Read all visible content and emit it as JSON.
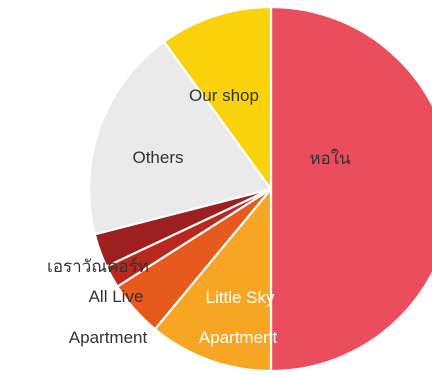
{
  "chart_data": {
    "type": "pie",
    "title": "",
    "values": [
      50.0,
      11.0,
      5.0,
      2.0,
      3.0,
      19.0,
      10.0
    ],
    "labels": [
      "หอใน",
      "Little Sky\nApartment",
      "Apartment",
      "All Live",
      "เอราวัณคอร์ท",
      "Others",
      "Our shop"
    ],
    "colors": [
      "#EA4E5C",
      "#F6A623",
      "#E75A1E",
      "#B9281E",
      "#9E1F1F",
      "#EAEAEA",
      "#FAD20C"
    ],
    "label_colors": [
      "#333333",
      "#ffffff",
      "#333333",
      "#333333",
      "#333333",
      "#333333",
      "#333333"
    ],
    "start_angle": "top",
    "direction": "clockwise",
    "legend": "none"
  }
}
